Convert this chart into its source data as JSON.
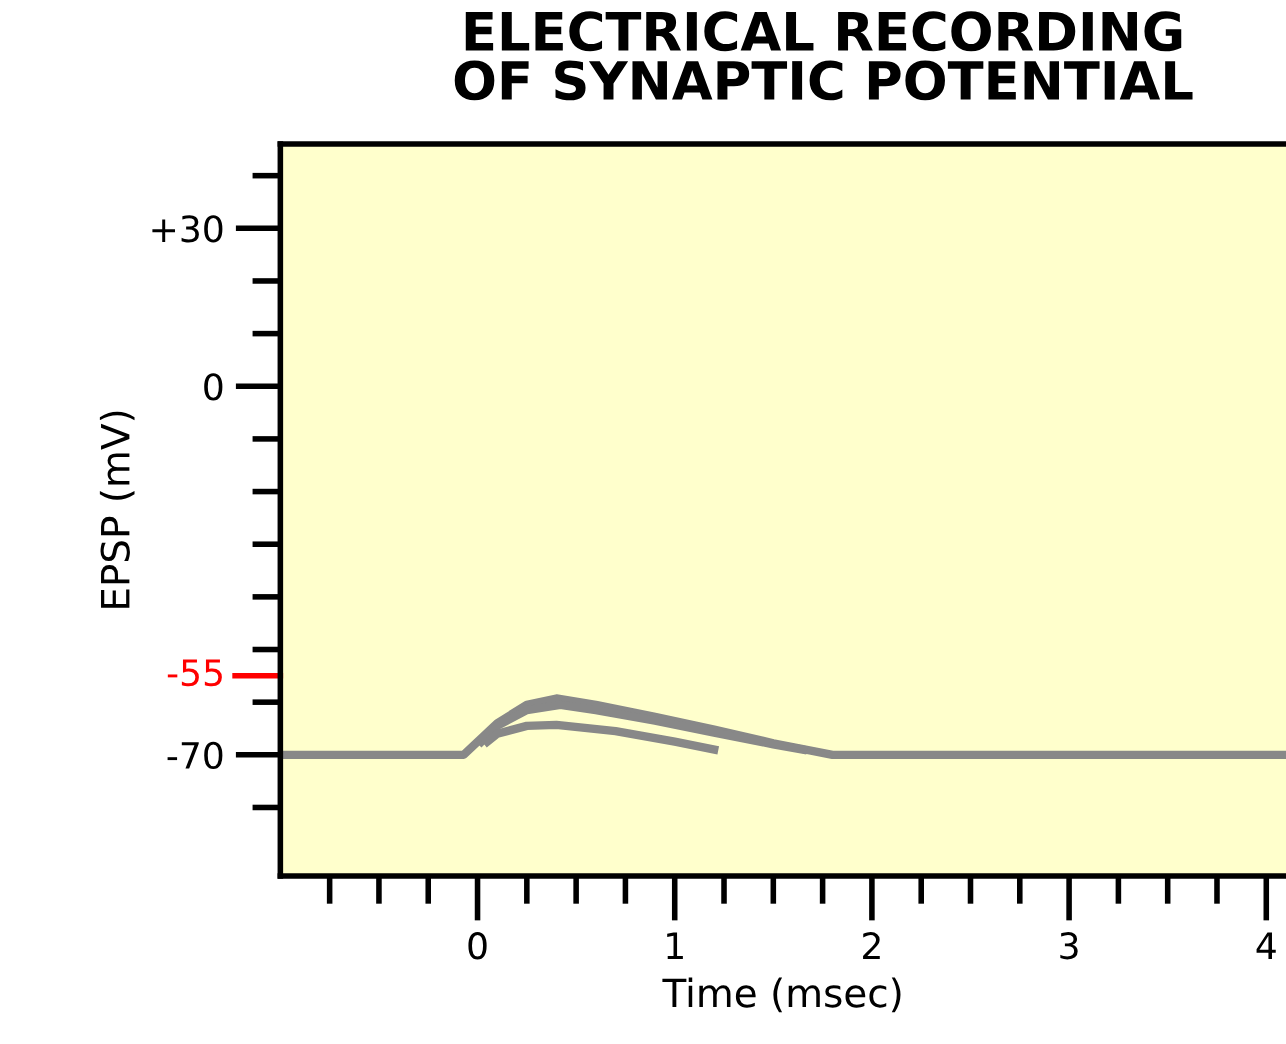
{
  "chart_data": {
    "type": "line",
    "title": "ELECTRICAL RECORDING\nOF SYNAPTIC POTENTIAL",
    "xlabel": "Time (msec)",
    "ylabel": "EPSP (mV)",
    "series": [
      {
        "color": "#888888",
        "x": [
          -1,
          -0.07,
          0.1,
          0.25,
          0.4,
          0.6,
          0.9,
          1.2,
          1.5,
          1.8,
          4.1
        ],
        "values": [
          -70,
          -70,
          -64,
          -60.5,
          -59.3,
          -60.5,
          -62.8,
          -65.2,
          -67.8,
          -70,
          -70
        ]
      },
      {
        "color": "#888888",
        "x": [
          0.02,
          0.1,
          0.25,
          0.42,
          0.6,
          0.9,
          1.2,
          1.5,
          1.65
        ],
        "values": [
          -67.5,
          -64.5,
          -61.5,
          -60.5,
          -61.5,
          -63.5,
          -65.8,
          -68,
          -69
        ]
      },
      {
        "color": "#888888",
        "x": [
          0.05,
          0.1,
          0.25,
          0.4,
          0.7,
          1.0,
          1.2
        ],
        "values": [
          -67.5,
          -66,
          -64.5,
          -64.3,
          -65.5,
          -67.5,
          -69
        ]
      }
    ],
    "xlim": [
      -1,
      4.1
    ],
    "ylim": [
      -93,
      46
    ],
    "xticks": [
      {
        "value": -0.75,
        "label": null
      },
      {
        "value": -0.5,
        "label": null
      },
      {
        "value": -0.25,
        "label": null
      },
      0,
      {
        "value": 0.25,
        "label": null
      },
      {
        "value": 0.5,
        "label": null
      },
      {
        "value": 0.75,
        "label": null
      },
      1,
      {
        "value": 1.25,
        "label": null
      },
      {
        "value": 1.5,
        "label": null
      },
      {
        "value": 1.75,
        "label": null
      },
      2,
      {
        "value": 2.25,
        "label": null
      },
      {
        "value": 2.5,
        "label": null
      },
      {
        "value": 2.75,
        "label": null
      },
      3,
      {
        "value": 3.25,
        "label": null
      },
      {
        "value": 3.5,
        "label": null
      },
      {
        "value": 3.75,
        "label": null
      },
      4
    ],
    "yticks": [
      {
        "value": 40,
        "label": null
      },
      {
        "value": 30,
        "label": "+30"
      },
      {
        "value": 20,
        "label": null
      },
      {
        "value": 10,
        "label": null
      },
      0,
      {
        "value": -10,
        "label": null
      },
      {
        "value": -20,
        "label": null
      },
      {
        "value": -30,
        "label": null
      },
      {
        "value": -40,
        "label": null
      },
      {
        "value": -50,
        "label": null
      },
      {
        "value": -60,
        "label": null
      },
      {
        "value": -70,
        "label": "-70"
      },
      {
        "value": -80,
        "label": null
      }
    ],
    "ref_lines": [
      {
        "axis": "y",
        "value": -55,
        "label": "-55",
        "color": "#ff0000"
      }
    ],
    "grid": false,
    "legend": false,
    "marker": "none",
    "line_style": "solid"
  }
}
